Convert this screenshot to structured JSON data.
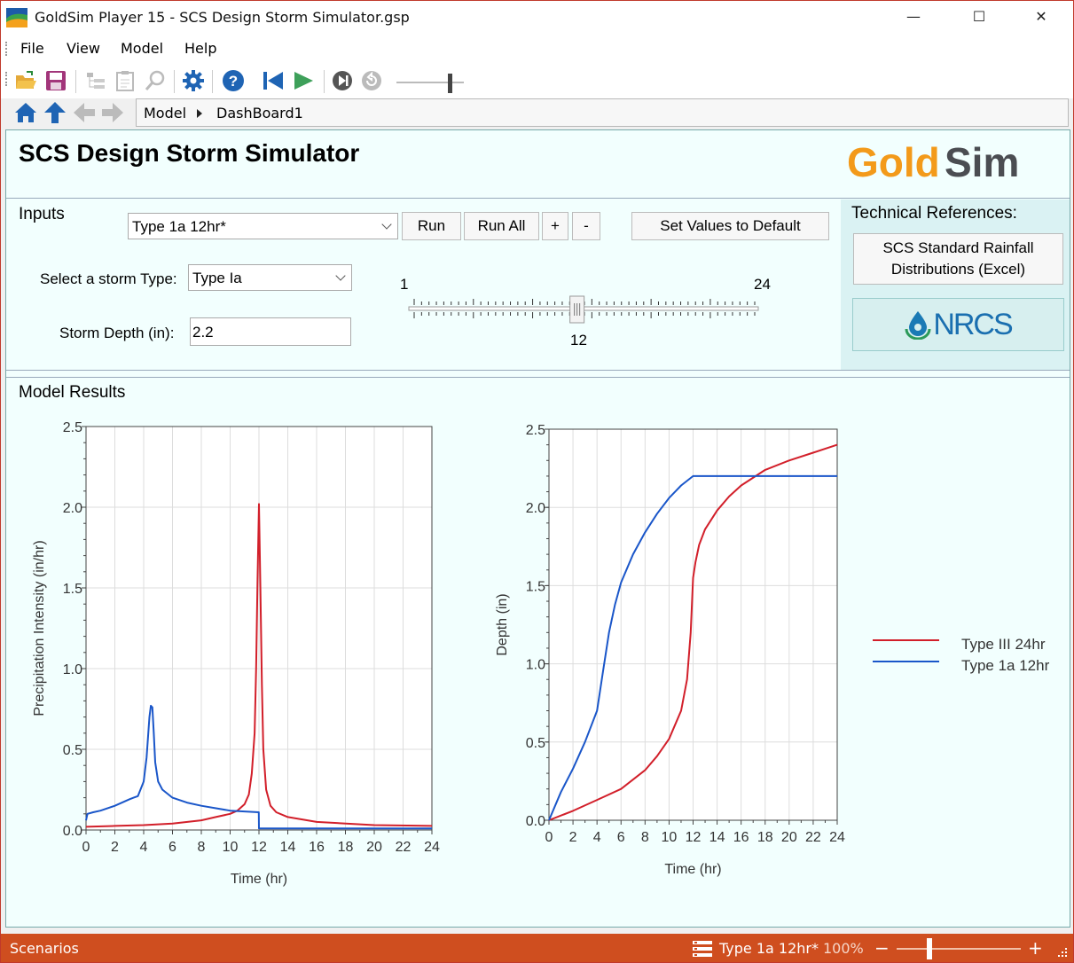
{
  "window": {
    "app": "GoldSim Player 15",
    "file": " - SCS Design Storm Simulator.gsp",
    "minimize": "—",
    "maximize": "☐",
    "close": "✕"
  },
  "menu": [
    "File",
    "View",
    "Model",
    "Help"
  ],
  "toolbar": {
    "icons": [
      "open-folder-icon",
      "save-icon",
      "tree-icon",
      "clipboard-icon",
      "magnify-icon",
      "settings-gear-icon",
      "help-icon",
      "rewind-to-start-icon",
      "run-icon",
      "step-icon",
      "reset-icon",
      "speed-slider"
    ]
  },
  "navigation": {
    "breadcrumb": [
      "Model",
      "DashBoard1"
    ]
  },
  "dashboard": {
    "title": "SCS Design Storm Simulator",
    "logo_text": {
      "gold": "Gold",
      "sim": "Sim"
    },
    "inputs": {
      "section_label": "Inputs",
      "scenario_selected": "Type 1a 12hr*",
      "run": "Run",
      "run_all": "Run All",
      "plus": "+",
      "minus": "-",
      "set_default": "Set Values to Default",
      "storm_type_label": "Select a storm Type:",
      "storm_type_value": "Type Ia",
      "depth_label": "Storm Depth (in):",
      "depth_value": "2.2",
      "slider": {
        "min": "1",
        "max": "24",
        "value": "12",
        "value_num": 12
      }
    },
    "tech_refs": {
      "label": "Technical References:",
      "excel_button": "SCS Standard Rainfall Distributions (Excel)",
      "nrcs": "NRCS"
    },
    "results_label": "Model Results"
  },
  "chart_data": [
    {
      "type": "line",
      "xlabel": "Time (hr)",
      "ylabel": "Precipitation Intensity (in/hr)",
      "xlim": [
        0,
        24
      ],
      "ylim": [
        0,
        2.5
      ],
      "xticks": [
        "0",
        "2",
        "4",
        "6",
        "8",
        "10",
        "12",
        "14",
        "16",
        "18",
        "20",
        "22",
        "24"
      ],
      "yticks": [
        "0.0",
        "0.5",
        "1.0",
        "1.5",
        "2.0",
        "2.5"
      ],
      "series": [
        {
          "name": "Type III 24hr",
          "color": "#d21f2a",
          "x": [
            0,
            2,
            4,
            6,
            8,
            9,
            10,
            10.5,
            11,
            11.3,
            11.5,
            11.7,
            11.8,
            11.9,
            12,
            12.1,
            12.2,
            12.3,
            12.5,
            12.8,
            13.2,
            14,
            16,
            20,
            24
          ],
          "y": [
            0.02,
            0.025,
            0.03,
            0.04,
            0.06,
            0.08,
            0.1,
            0.12,
            0.16,
            0.22,
            0.35,
            0.6,
            1.0,
            1.55,
            2.02,
            1.5,
            0.9,
            0.5,
            0.25,
            0.15,
            0.11,
            0.08,
            0.05,
            0.03,
            0.025
          ]
        },
        {
          "name": "Type 1a 12hr",
          "color": "#1a56c9",
          "x": [
            0,
            0.1,
            0.5,
            1,
            2,
            3,
            3.3,
            3.6,
            4,
            4.2,
            4.4,
            4.5,
            4.6,
            4.7,
            4.8,
            5,
            5.3,
            6,
            7,
            8,
            10,
            11.99,
            12,
            24
          ],
          "y": [
            0.06,
            0.1,
            0.11,
            0.12,
            0.15,
            0.19,
            0.2,
            0.21,
            0.3,
            0.45,
            0.7,
            0.77,
            0.76,
            0.6,
            0.42,
            0.3,
            0.25,
            0.2,
            0.17,
            0.15,
            0.12,
            0.11,
            0.01,
            0.01
          ]
        }
      ]
    },
    {
      "type": "line",
      "xlabel": "Time (hr)",
      "ylabel": "Depth (in)",
      "xlim": [
        0,
        24
      ],
      "ylim": [
        0,
        2.5
      ],
      "xticks": [
        "0",
        "2",
        "4",
        "6",
        "8",
        "10",
        "12",
        "14",
        "16",
        "18",
        "20",
        "22",
        "24"
      ],
      "yticks": [
        "0.0",
        "0.5",
        "1.0",
        "1.5",
        "2.0",
        "2.5"
      ],
      "series": [
        {
          "name": "Type III 24hr",
          "color": "#d21f2a",
          "x": [
            0,
            2,
            4,
            6,
            8,
            9,
            10,
            11,
            11.5,
            11.8,
            12,
            12.2,
            12.5,
            13,
            14,
            15,
            16,
            18,
            20,
            22,
            24
          ],
          "y": [
            0,
            0.06,
            0.13,
            0.2,
            0.32,
            0.41,
            0.52,
            0.7,
            0.9,
            1.2,
            1.55,
            1.65,
            1.76,
            1.86,
            1.98,
            2.07,
            2.14,
            2.24,
            2.3,
            2.35,
            2.4
          ]
        },
        {
          "name": "Type 1a 12hr",
          "color": "#1a56c9",
          "x": [
            0,
            1,
            2,
            3,
            4,
            4.5,
            5,
            5.5,
            6,
            7,
            8,
            9,
            10,
            11,
            12,
            24
          ],
          "y": [
            0,
            0.18,
            0.33,
            0.5,
            0.7,
            0.95,
            1.2,
            1.38,
            1.52,
            1.7,
            1.84,
            1.96,
            2.06,
            2.14,
            2.2,
            2.2
          ]
        }
      ]
    }
  ],
  "legend": [
    "Type III 24hr",
    "Type 1a 12hr"
  ],
  "status": {
    "left": "Scenarios",
    "scenario": "Type 1a 12hr*",
    "zoom": "100%",
    "minus": "−",
    "plus": "+"
  }
}
